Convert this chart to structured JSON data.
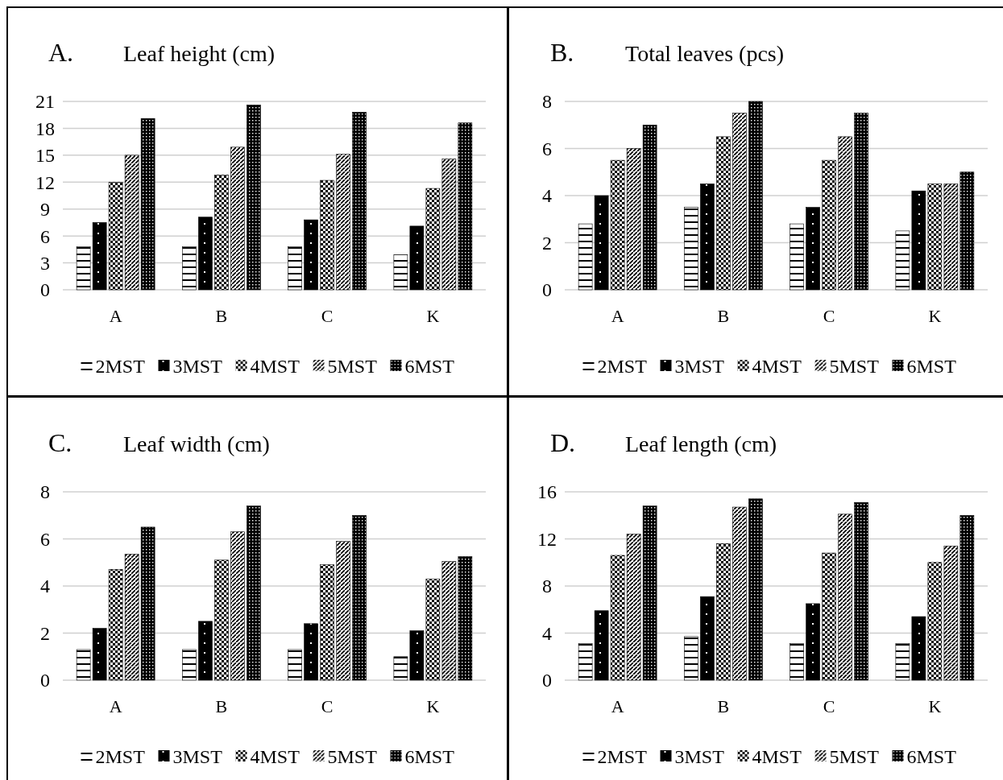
{
  "chart_data": [
    {
      "type": "bar",
      "title": "Leaf height (cm)",
      "annotations": [
        "A."
      ],
      "categories": [
        "A",
        "B",
        "C",
        "K"
      ],
      "ylim": [
        0,
        21
      ],
      "yticks": [
        0,
        3,
        6,
        9,
        12,
        15,
        18,
        21
      ],
      "grid": "y",
      "legend": "bottom",
      "series": [
        {
          "name": "2MST",
          "color": "#000000",
          "values": [
            4.8,
            4.8,
            4.8,
            3.9
          ]
        },
        {
          "name": "3MST",
          "color": "#000000",
          "values": [
            7.5,
            8.1,
            7.8,
            7.1
          ]
        },
        {
          "name": "4MST",
          "color": "#000000",
          "values": [
            12,
            12.8,
            12.2,
            11.3
          ]
        },
        {
          "name": "5MST",
          "color": "#000000",
          "values": [
            15,
            15.9,
            15.1,
            14.6
          ]
        },
        {
          "name": "6MST",
          "color": "#000000",
          "values": [
            19.1,
            20.6,
            19.8,
            18.6
          ]
        }
      ]
    },
    {
      "type": "bar",
      "title": "Total leaves (pcs)",
      "annotations": [
        "B."
      ],
      "categories": [
        "A",
        "B",
        "C",
        "K"
      ],
      "ylim": [
        0,
        8
      ],
      "yticks": [
        0,
        2,
        4,
        6,
        8
      ],
      "grid": "y",
      "legend": "bottom",
      "series": [
        {
          "name": "2MST",
          "color": "#000000",
          "values": [
            2.8,
            3.5,
            2.8,
            2.5
          ]
        },
        {
          "name": "3MST",
          "color": "#000000",
          "values": [
            4,
            4.5,
            3.5,
            4.2
          ]
        },
        {
          "name": "4MST",
          "color": "#000000",
          "values": [
            5.5,
            6.5,
            5.5,
            4.5
          ]
        },
        {
          "name": "5MST",
          "color": "#000000",
          "values": [
            6,
            7.5,
            6.5,
            4.5
          ]
        },
        {
          "name": "6MST",
          "color": "#000000",
          "values": [
            7,
            8,
            7.5,
            5
          ]
        }
      ]
    },
    {
      "type": "bar",
      "title": "Leaf width (cm)",
      "annotations": [
        "C."
      ],
      "categories": [
        "A",
        "B",
        "C",
        "K"
      ],
      "ylim": [
        0,
        8
      ],
      "yticks": [
        0,
        2,
        4,
        6,
        8
      ],
      "grid": "y",
      "legend": "bottom",
      "series": [
        {
          "name": "2MST",
          "color": "#000000",
          "values": [
            1.3,
            1.3,
            1.3,
            1.0
          ]
        },
        {
          "name": "3MST",
          "color": "#000000",
          "values": [
            2.2,
            2.5,
            2.4,
            2.1
          ]
        },
        {
          "name": "4MST",
          "color": "#000000",
          "values": [
            4.7,
            5.1,
            4.9,
            4.3
          ]
        },
        {
          "name": "5MST",
          "color": "#000000",
          "values": [
            5.35,
            6.3,
            5.9,
            5.05
          ]
        },
        {
          "name": "6MST",
          "color": "#000000",
          "values": [
            6.5,
            7.4,
            7.0,
            5.25
          ]
        }
      ]
    },
    {
      "type": "bar",
      "title": "Leaf length (cm)",
      "annotations": [
        "D."
      ],
      "categories": [
        "A",
        "B",
        "C",
        "K"
      ],
      "ylim": [
        0,
        16
      ],
      "yticks": [
        0,
        4,
        8,
        12,
        16
      ],
      "grid": "y",
      "legend": "bottom",
      "series": [
        {
          "name": "2MST",
          "color": "#000000",
          "values": [
            3.1,
            3.7,
            3.1,
            3.1
          ]
        },
        {
          "name": "3MST",
          "color": "#000000",
          "values": [
            5.9,
            7.1,
            6.5,
            5.4
          ]
        },
        {
          "name": "4MST",
          "color": "#000000",
          "values": [
            10.6,
            11.6,
            10.8,
            10.0
          ]
        },
        {
          "name": "5MST",
          "color": "#000000",
          "values": [
            12.4,
            14.7,
            14.1,
            11.4
          ]
        },
        {
          "name": "6MST",
          "color": "#000000",
          "values": [
            14.8,
            15.4,
            15.1,
            14.0
          ]
        }
      ]
    }
  ]
}
